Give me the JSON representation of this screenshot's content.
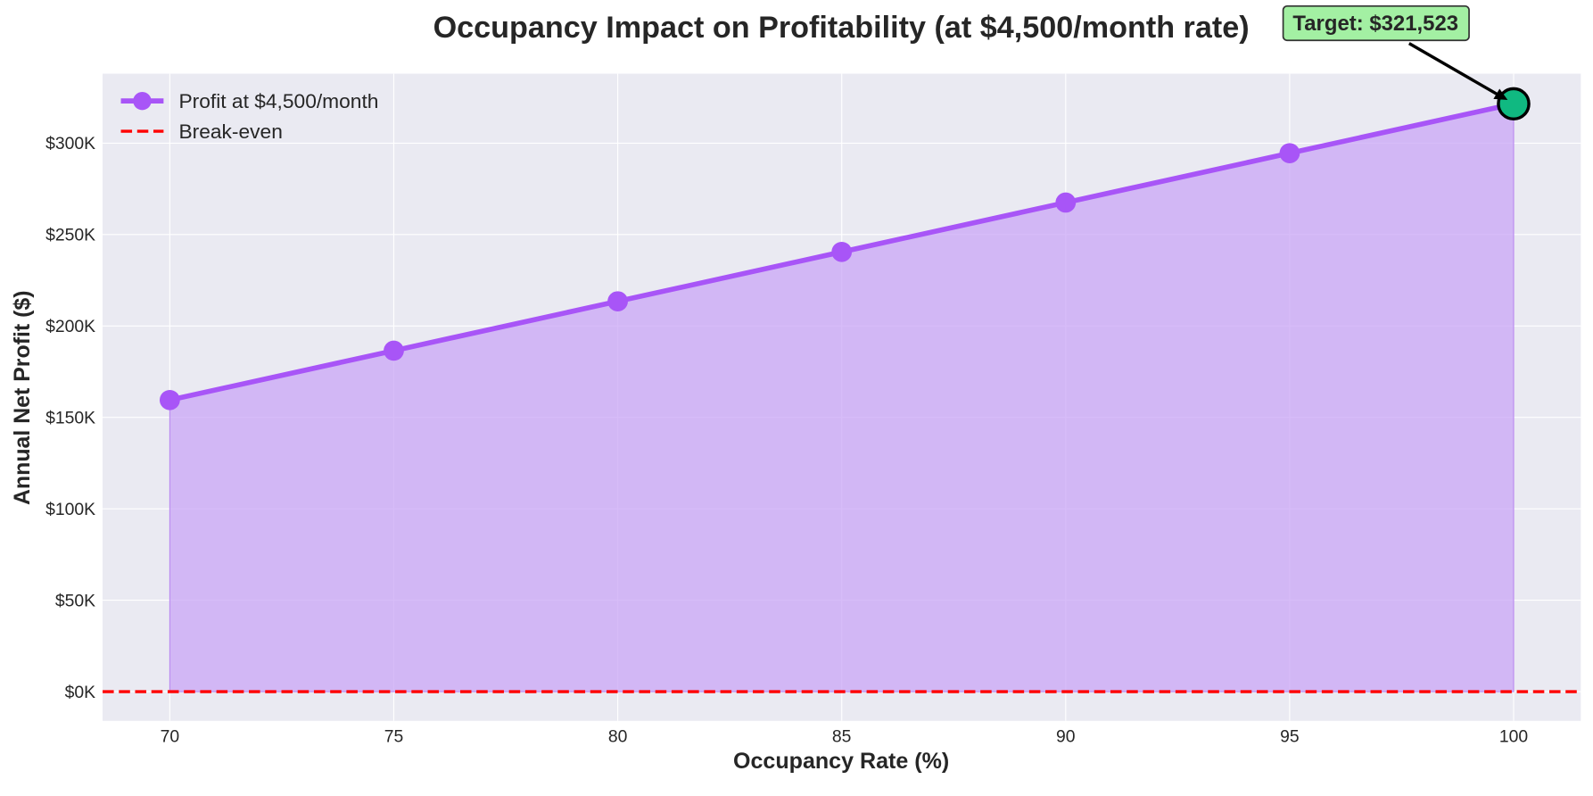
{
  "chart_data": {
    "type": "line",
    "title": "Occupancy Impact on Profitability (at $4,500/month rate)",
    "xlabel": "Occupancy Rate (%)",
    "ylabel": "Annual Net Profit ($)",
    "x": [
      70,
      75,
      80,
      85,
      90,
      95,
      100
    ],
    "series": [
      {
        "name": "Profit at $4,500/month",
        "values": [
          159499,
          186503,
          213507,
          240511,
          267515,
          294519,
          321523
        ],
        "color": "#a855f7",
        "fill": true,
        "fill_color": "#c9a6f5"
      }
    ],
    "reference_lines": [
      {
        "name": "Break-even",
        "y": 0,
        "color": "#ff0000",
        "style": "dashed"
      }
    ],
    "xticks": [
      70,
      75,
      80,
      85,
      90,
      95,
      100
    ],
    "xtick_labels": [
      "70",
      "75",
      "80",
      "85",
      "90",
      "95",
      "100"
    ],
    "yticks": [
      0,
      50000,
      100000,
      150000,
      200000,
      250000,
      300000
    ],
    "ytick_labels": [
      "$0K",
      "$50K",
      "$100K",
      "$150K",
      "$200K",
      "$250K",
      "$300K"
    ],
    "xlim": [
      68.5,
      101.5
    ],
    "ylim": [
      -16000,
      338000
    ],
    "grid": true,
    "legend_position": "top-left",
    "annotation": {
      "text": "Target: $321,523",
      "x": 100,
      "y": 321523,
      "box_color": "#a3f0a3",
      "marker_color": "#10b981"
    },
    "background": "#eaeaf2"
  }
}
